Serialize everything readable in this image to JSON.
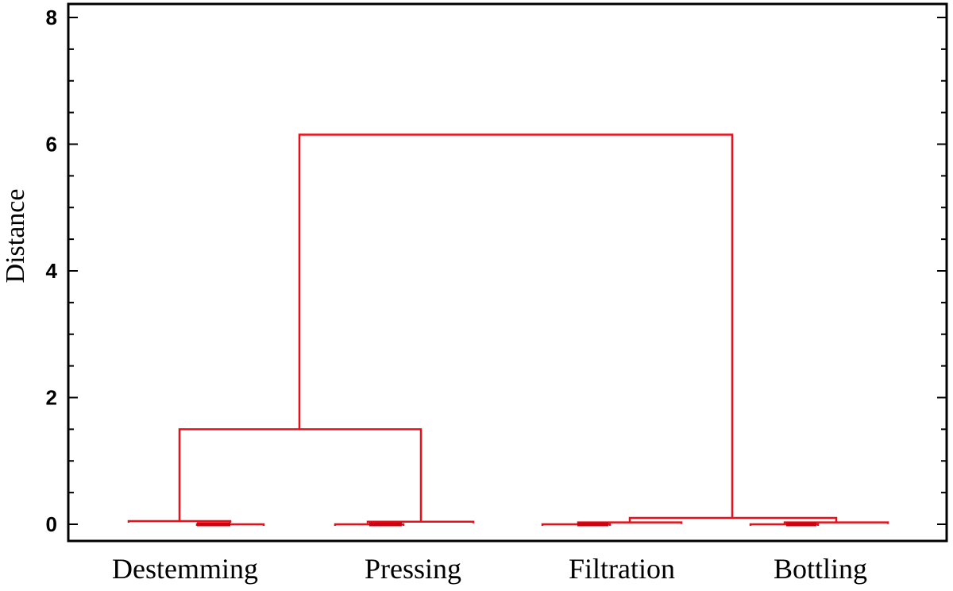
{
  "chart_data": {
    "type": "dendrogram",
    "title": "",
    "xlabel": "",
    "ylabel": "Distance",
    "ylim": [
      0,
      8
    ],
    "yticks": [
      "0",
      "2",
      "4",
      "6",
      "8"
    ],
    "leaf_groups": [
      "Destemming",
      "Pressing",
      "Filtration",
      "Bottling"
    ],
    "merges": [
      {
        "left": "Destemming",
        "right": "Pressing",
        "height": 1.5
      },
      {
        "left": "Filtration",
        "right": "Bottling",
        "height": 0.1
      },
      {
        "left": "Destemming+Pressing",
        "right": "Filtration+Bottling",
        "height": 6.15
      }
    ],
    "line_color": "#e8101a",
    "grid": false
  }
}
